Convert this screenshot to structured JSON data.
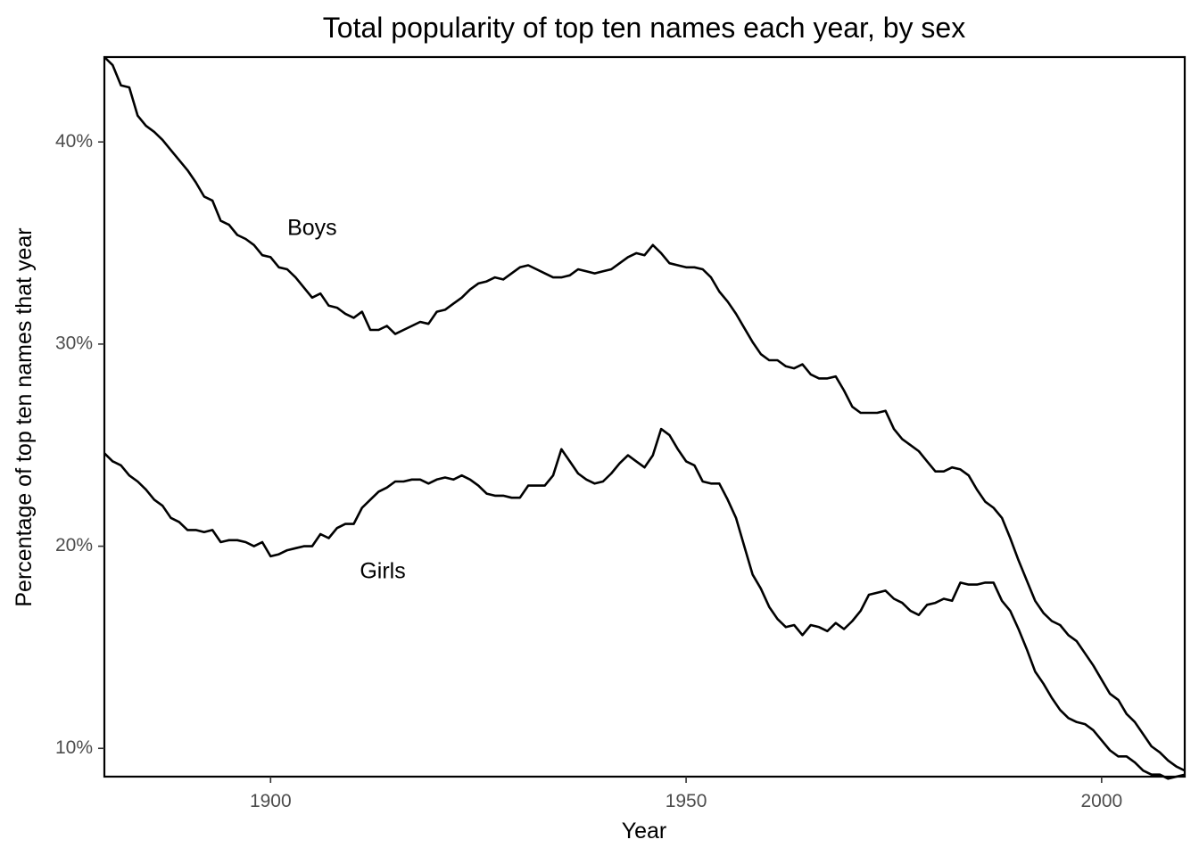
{
  "chart_data": {
    "type": "line",
    "title": "Total popularity of top ten names each year, by sex",
    "xlabel": "Year",
    "ylabel": "Percentage of top ten names that year",
    "xlim": [
      1880,
      2010
    ],
    "ylim": [
      8.6,
      44.2
    ],
    "x_ticks": [
      {
        "value": 1900,
        "label": "1900"
      },
      {
        "value": 1950,
        "label": "1950"
      },
      {
        "value": 2000,
        "label": "2000"
      }
    ],
    "y_ticks": [
      {
        "value": 10,
        "label": "10%"
      },
      {
        "value": 20,
        "label": "20%"
      },
      {
        "value": 30,
        "label": "30%"
      },
      {
        "value": 40,
        "label": "40%"
      }
    ],
    "grid": false,
    "line_color": "#000000",
    "series": [
      {
        "name": "Boys",
        "label_position": {
          "x": 1905,
          "y": 35.7
        },
        "points": [
          [
            1880,
            44.2
          ],
          [
            1881,
            43.8
          ],
          [
            1882,
            42.8
          ],
          [
            1883,
            42.7
          ],
          [
            1884,
            41.3
          ],
          [
            1885,
            40.8
          ],
          [
            1886,
            40.5
          ],
          [
            1887,
            40.1
          ],
          [
            1888,
            39.6
          ],
          [
            1889,
            39.1
          ],
          [
            1890,
            38.6
          ],
          [
            1891,
            38.0
          ],
          [
            1892,
            37.3
          ],
          [
            1893,
            37.1
          ],
          [
            1894,
            36.1
          ],
          [
            1895,
            35.9
          ],
          [
            1896,
            35.4
          ],
          [
            1897,
            35.2
          ],
          [
            1898,
            34.9
          ],
          [
            1899,
            34.4
          ],
          [
            1900,
            34.3
          ],
          [
            1901,
            33.8
          ],
          [
            1902,
            33.7
          ],
          [
            1903,
            33.3
          ],
          [
            1904,
            32.8
          ],
          [
            1905,
            32.3
          ],
          [
            1906,
            32.5
          ],
          [
            1907,
            31.9
          ],
          [
            1908,
            31.8
          ],
          [
            1909,
            31.5
          ],
          [
            1910,
            31.3
          ],
          [
            1911,
            31.6
          ],
          [
            1912,
            30.7
          ],
          [
            1913,
            30.7
          ],
          [
            1914,
            30.9
          ],
          [
            1915,
            30.5
          ],
          [
            1916,
            30.7
          ],
          [
            1917,
            30.9
          ],
          [
            1918,
            31.1
          ],
          [
            1919,
            31.0
          ],
          [
            1920,
            31.6
          ],
          [
            1921,
            31.7
          ],
          [
            1922,
            32.0
          ],
          [
            1923,
            32.3
          ],
          [
            1924,
            32.7
          ],
          [
            1925,
            33.0
          ],
          [
            1926,
            33.1
          ],
          [
            1927,
            33.3
          ],
          [
            1928,
            33.2
          ],
          [
            1929,
            33.5
          ],
          [
            1930,
            33.8
          ],
          [
            1931,
            33.9
          ],
          [
            1932,
            33.7
          ],
          [
            1933,
            33.5
          ],
          [
            1934,
            33.3
          ],
          [
            1935,
            33.3
          ],
          [
            1936,
            33.4
          ],
          [
            1937,
            33.7
          ],
          [
            1938,
            33.6
          ],
          [
            1939,
            33.5
          ],
          [
            1940,
            33.6
          ],
          [
            1941,
            33.7
          ],
          [
            1942,
            34.0
          ],
          [
            1943,
            34.3
          ],
          [
            1944,
            34.5
          ],
          [
            1945,
            34.4
          ],
          [
            1946,
            34.9
          ],
          [
            1947,
            34.5
          ],
          [
            1948,
            34.0
          ],
          [
            1949,
            33.9
          ],
          [
            1950,
            33.8
          ],
          [
            1951,
            33.8
          ],
          [
            1952,
            33.7
          ],
          [
            1953,
            33.3
          ],
          [
            1954,
            32.6
          ],
          [
            1955,
            32.1
          ],
          [
            1956,
            31.5
          ],
          [
            1957,
            30.8
          ],
          [
            1958,
            30.1
          ],
          [
            1959,
            29.5
          ],
          [
            1960,
            29.2
          ],
          [
            1961,
            29.2
          ],
          [
            1962,
            28.9
          ],
          [
            1963,
            28.8
          ],
          [
            1964,
            29.0
          ],
          [
            1965,
            28.5
          ],
          [
            1966,
            28.3
          ],
          [
            1967,
            28.3
          ],
          [
            1968,
            28.4
          ],
          [
            1969,
            27.7
          ],
          [
            1970,
            26.9
          ],
          [
            1971,
            26.6
          ],
          [
            1972,
            26.6
          ],
          [
            1973,
            26.6
          ],
          [
            1974,
            26.7
          ],
          [
            1975,
            25.8
          ],
          [
            1976,
            25.3
          ],
          [
            1977,
            25.0
          ],
          [
            1978,
            24.7
          ],
          [
            1979,
            24.2
          ],
          [
            1980,
            23.7
          ],
          [
            1981,
            23.7
          ],
          [
            1982,
            23.9
          ],
          [
            1983,
            23.8
          ],
          [
            1984,
            23.5
          ],
          [
            1985,
            22.8
          ],
          [
            1986,
            22.2
          ],
          [
            1987,
            21.9
          ],
          [
            1988,
            21.4
          ],
          [
            1989,
            20.4
          ],
          [
            1990,
            19.3
          ],
          [
            1991,
            18.3
          ],
          [
            1992,
            17.3
          ],
          [
            1993,
            16.7
          ],
          [
            1994,
            16.3
          ],
          [
            1995,
            16.1
          ],
          [
            1996,
            15.6
          ],
          [
            1997,
            15.3
          ],
          [
            1998,
            14.7
          ],
          [
            1999,
            14.1
          ],
          [
            2000,
            13.4
          ],
          [
            2001,
            12.7
          ],
          [
            2002,
            12.4
          ],
          [
            2003,
            11.7
          ],
          [
            2004,
            11.3
          ],
          [
            2005,
            10.7
          ],
          [
            2006,
            10.1
          ],
          [
            2007,
            9.8
          ],
          [
            2008,
            9.4
          ],
          [
            2009,
            9.1
          ],
          [
            2010,
            8.9
          ]
        ]
      },
      {
        "name": "Girls",
        "label_position": {
          "x": 1913.5,
          "y": 18.7
        },
        "points": [
          [
            1880,
            24.6
          ],
          [
            1881,
            24.2
          ],
          [
            1882,
            24.0
          ],
          [
            1883,
            23.5
          ],
          [
            1884,
            23.2
          ],
          [
            1885,
            22.8
          ],
          [
            1886,
            22.3
          ],
          [
            1887,
            22.0
          ],
          [
            1888,
            21.4
          ],
          [
            1889,
            21.2
          ],
          [
            1890,
            20.8
          ],
          [
            1891,
            20.8
          ],
          [
            1892,
            20.7
          ],
          [
            1893,
            20.8
          ],
          [
            1894,
            20.2
          ],
          [
            1895,
            20.3
          ],
          [
            1896,
            20.3
          ],
          [
            1897,
            20.2
          ],
          [
            1898,
            20.0
          ],
          [
            1899,
            20.2
          ],
          [
            1900,
            19.5
          ],
          [
            1901,
            19.6
          ],
          [
            1902,
            19.8
          ],
          [
            1903,
            19.9
          ],
          [
            1904,
            20.0
          ],
          [
            1905,
            20.0
          ],
          [
            1906,
            20.6
          ],
          [
            1907,
            20.4
          ],
          [
            1908,
            20.9
          ],
          [
            1909,
            21.1
          ],
          [
            1910,
            21.1
          ],
          [
            1911,
            21.9
          ],
          [
            1912,
            22.3
          ],
          [
            1913,
            22.7
          ],
          [
            1914,
            22.9
          ],
          [
            1915,
            23.2
          ],
          [
            1916,
            23.2
          ],
          [
            1917,
            23.3
          ],
          [
            1918,
            23.3
          ],
          [
            1919,
            23.1
          ],
          [
            1920,
            23.3
          ],
          [
            1921,
            23.4
          ],
          [
            1922,
            23.3
          ],
          [
            1923,
            23.5
          ],
          [
            1924,
            23.3
          ],
          [
            1925,
            23.0
          ],
          [
            1926,
            22.6
          ],
          [
            1927,
            22.5
          ],
          [
            1928,
            22.5
          ],
          [
            1929,
            22.4
          ],
          [
            1930,
            22.4
          ],
          [
            1931,
            23.0
          ],
          [
            1932,
            23.0
          ],
          [
            1933,
            23.0
          ],
          [
            1934,
            23.5
          ],
          [
            1935,
            24.8
          ],
          [
            1936,
            24.2
          ],
          [
            1937,
            23.6
          ],
          [
            1938,
            23.3
          ],
          [
            1939,
            23.1
          ],
          [
            1940,
            23.2
          ],
          [
            1941,
            23.6
          ],
          [
            1942,
            24.1
          ],
          [
            1943,
            24.5
          ],
          [
            1944,
            24.2
          ],
          [
            1945,
            23.9
          ],
          [
            1946,
            24.5
          ],
          [
            1947,
            25.8
          ],
          [
            1948,
            25.5
          ],
          [
            1949,
            24.8
          ],
          [
            1950,
            24.2
          ],
          [
            1951,
            24.0
          ],
          [
            1952,
            23.2
          ],
          [
            1953,
            23.1
          ],
          [
            1954,
            23.1
          ],
          [
            1955,
            22.3
          ],
          [
            1956,
            21.4
          ],
          [
            1957,
            20.0
          ],
          [
            1958,
            18.6
          ],
          [
            1959,
            17.9
          ],
          [
            1960,
            17.0
          ],
          [
            1961,
            16.4
          ],
          [
            1962,
            16.0
          ],
          [
            1963,
            16.1
          ],
          [
            1964,
            15.6
          ],
          [
            1965,
            16.1
          ],
          [
            1966,
            16.0
          ],
          [
            1967,
            15.8
          ],
          [
            1968,
            16.2
          ],
          [
            1969,
            15.9
          ],
          [
            1970,
            16.3
          ],
          [
            1971,
            16.8
          ],
          [
            1972,
            17.6
          ],
          [
            1973,
            17.7
          ],
          [
            1974,
            17.8
          ],
          [
            1975,
            17.4
          ],
          [
            1976,
            17.2
          ],
          [
            1977,
            16.8
          ],
          [
            1978,
            16.6
          ],
          [
            1979,
            17.1
          ],
          [
            1980,
            17.2
          ],
          [
            1981,
            17.4
          ],
          [
            1982,
            17.3
          ],
          [
            1983,
            18.2
          ],
          [
            1984,
            18.1
          ],
          [
            1985,
            18.1
          ],
          [
            1986,
            18.2
          ],
          [
            1987,
            18.2
          ],
          [
            1988,
            17.3
          ],
          [
            1989,
            16.8
          ],
          [
            1990,
            15.9
          ],
          [
            1991,
            14.9
          ],
          [
            1992,
            13.8
          ],
          [
            1993,
            13.2
          ],
          [
            1994,
            12.5
          ],
          [
            1995,
            11.9
          ],
          [
            1996,
            11.5
          ],
          [
            1997,
            11.3
          ],
          [
            1998,
            11.2
          ],
          [
            1999,
            10.9
          ],
          [
            2000,
            10.4
          ],
          [
            2001,
            9.9
          ],
          [
            2002,
            9.6
          ],
          [
            2003,
            9.6
          ],
          [
            2004,
            9.3
          ],
          [
            2005,
            8.9
          ],
          [
            2006,
            8.7
          ],
          [
            2007,
            8.7
          ],
          [
            2008,
            8.5
          ],
          [
            2009,
            8.6
          ],
          [
            2010,
            8.7
          ]
        ]
      }
    ]
  }
}
